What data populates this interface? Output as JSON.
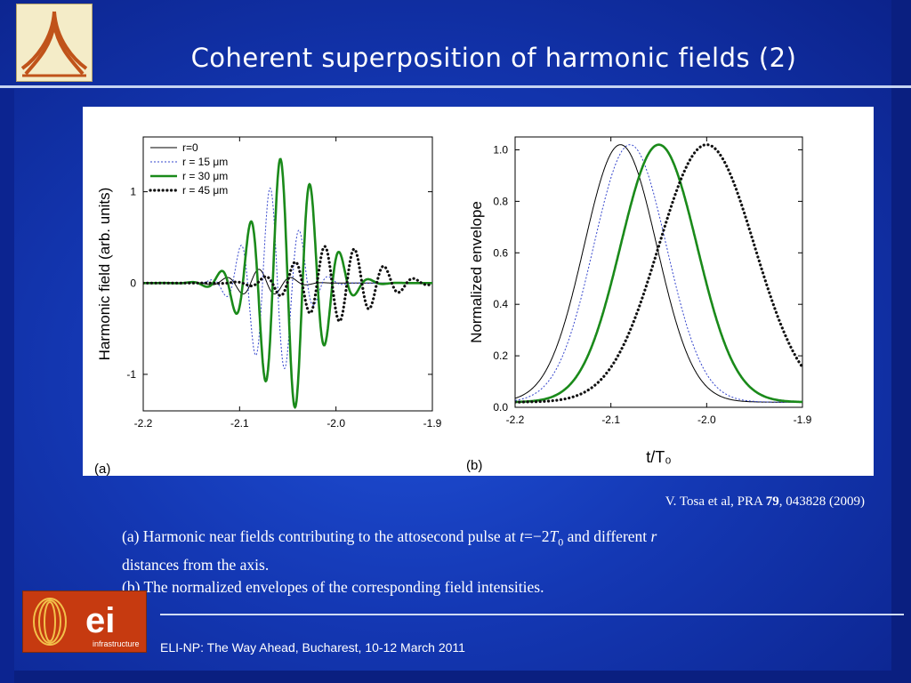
{
  "slide": {
    "title": "Coherent superposition of harmonic fields (2)",
    "citation": {
      "prefix": "V. Tosa et al, PRA ",
      "volume": "79",
      "suffix": ", 043828 (2009)"
    },
    "caption": {
      "line_a_pre": "(a) Harmonic near fields contributing to the attosecond pulse at ",
      "t_var": "t",
      "t_eq": "=−2",
      "T_var": "T",
      "T_sub": "0",
      "line_a_mid": " and different ",
      "r_var": "r",
      "line_a_end": "distances from the axis.",
      "line_b": "(b) The normalized envelopes of the corresponding field intensities."
    },
    "footer": "ELI-NP: The Way Ahead, Bucharest, 10-12 March 2011",
    "logo_bottom_text": {
      "main": "ei",
      "sub": "infrastructure"
    },
    "colors": {
      "black": "#000000",
      "blue_dotted": "#3344cc",
      "green": "#1a8a1a",
      "dots": "#111111"
    }
  },
  "chart_data": [
    {
      "type": "line",
      "panel_label": "(a)",
      "xlabel": "",
      "ylabel": "Harmonic field (arb. units)",
      "xlim": [
        -2.2,
        -1.9
      ],
      "ylim": [
        -1.4,
        1.6
      ],
      "x_ticks": [
        "-2.2",
        "-2.1",
        "-2.0",
        "-1.9"
      ],
      "y_ticks": [
        "-1",
        "0",
        "1"
      ],
      "legend": {
        "position": "top-left",
        "entries": [
          "r=0",
          "r = 15 μm",
          "r = 30 μm",
          "r = 45 μm"
        ]
      },
      "series": [
        {
          "name": "r=0",
          "style": "solid-thin",
          "center": -2.08,
          "width": 0.035,
          "amplitude": 0.15,
          "period": 0.034,
          "phase": 0.0
        },
        {
          "name": "r = 15 μm",
          "style": "dotted-blue",
          "center": -2.065,
          "width": 0.035,
          "amplitude": 1.05,
          "period": 0.031,
          "phase": 0.7
        },
        {
          "name": "r = 30 μm",
          "style": "solid-green-thick",
          "center": -2.05,
          "width": 0.045,
          "amplitude": 1.4,
          "period": 0.031,
          "phase": 1.6
        },
        {
          "name": "r = 45 μm",
          "style": "dots-black",
          "center": -2.0,
          "width": 0.055,
          "amplitude": 0.42,
          "period": 0.031,
          "phase": 2.4
        }
      ]
    },
    {
      "type": "line",
      "panel_label": "(b)",
      "xlabel": "t/T₀",
      "ylabel": "Normalized envelope",
      "xlim": [
        -2.2,
        -1.9
      ],
      "ylim": [
        0.0,
        1.05
      ],
      "x_ticks": [
        "-2.2",
        "-2.1",
        "-2.0",
        "-1.9"
      ],
      "y_ticks": [
        "0.0",
        "0.2",
        "0.4",
        "0.6",
        "0.8",
        "1.0"
      ],
      "series": [
        {
          "name": "r=0",
          "style": "solid-thin",
          "peak_x": -2.09,
          "sigma": 0.038
        },
        {
          "name": "r = 15 μm",
          "style": "dotted-blue",
          "peak_x": -2.08,
          "sigma": 0.038
        },
        {
          "name": "r = 30 μm",
          "style": "solid-green-thick",
          "peak_x": -2.05,
          "sigma": 0.04
        },
        {
          "name": "r = 45 μm",
          "style": "dots-black",
          "peak_x": -2.0,
          "sigma": 0.05
        }
      ]
    }
  ]
}
